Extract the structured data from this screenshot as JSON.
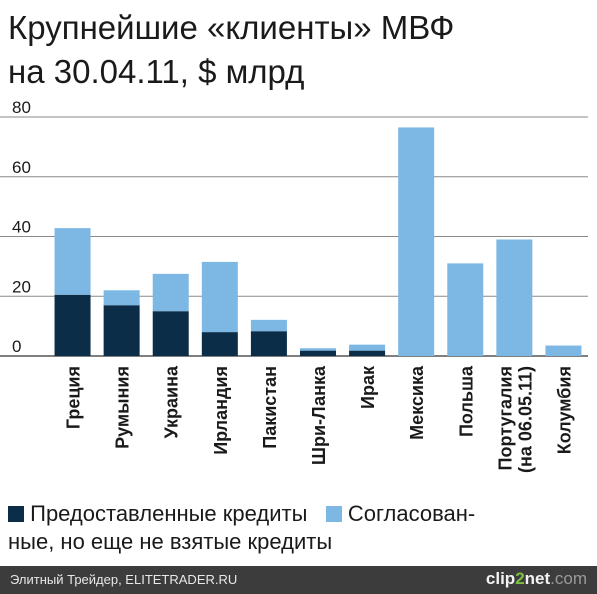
{
  "title": {
    "line1": "Крупнейшие «клиенты» МВФ",
    "line2": "на 30.04.11, $ млрд"
  },
  "legend": {
    "item1_label": "Предоставленные кредиты",
    "item2_label_part1": "Согласован-",
    "item2_label_part2": "ные, но еще не взятые кредиты"
  },
  "footer": {
    "source": "Элитный Трейдер, ELITETRADER.RU",
    "logo_part1": "clip",
    "logo_part2": "2",
    "logo_part3": "net",
    "logo_part4": ".com"
  },
  "colors": {
    "disbursed": "#0b2d48",
    "agreed": "#7db7e3",
    "grid": "#8a8a8a",
    "text": "#1a1a1a"
  },
  "chart_data": {
    "type": "bar",
    "stacked": true,
    "categories": [
      "Греция",
      "Румыния",
      "Украина",
      "Ирландия",
      "Пакистан",
      "Шри-Ланка",
      "Ирак",
      "Мексика",
      "Польша",
      "Португалия (на 06.05.11)",
      "Колумбия"
    ],
    "series": [
      {
        "name": "Предоставленные кредиты",
        "values": [
          20.5,
          17.0,
          15.0,
          8.0,
          8.3,
          1.8,
          1.8,
          0,
          0,
          0,
          0
        ]
      },
      {
        "name": "Согласованные, но еще не взятые кредиты",
        "values": [
          22.3,
          5.0,
          12.5,
          23.5,
          3.8,
          0.8,
          2.0,
          76.5,
          31.0,
          39.0,
          3.5
        ]
      }
    ],
    "ylim": [
      0,
      80
    ],
    "yticks": [
      0,
      20,
      40,
      60,
      80
    ],
    "grid": true,
    "legend": "bottom"
  }
}
